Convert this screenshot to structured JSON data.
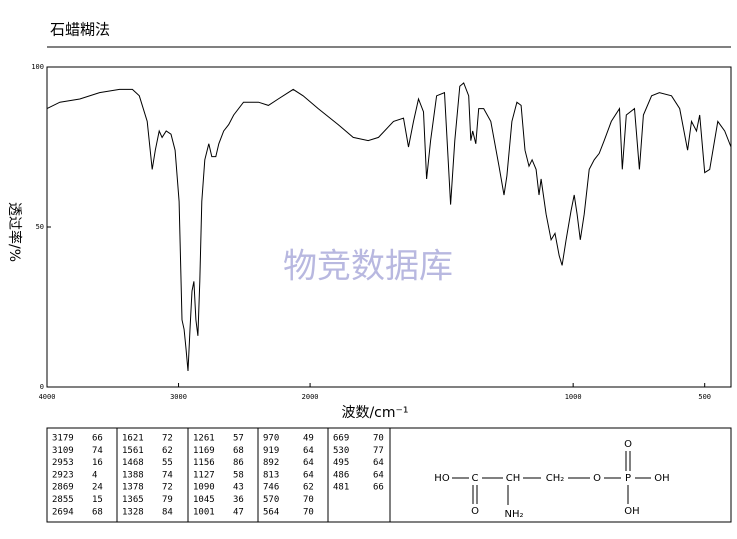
{
  "chart_data": {
    "type": "line",
    "title": "石蜡糊法",
    "x_label": "波数/cm⁻¹",
    "y_label": "透过率/%",
    "watermark": "物竞数据库",
    "xlim": [
      4000,
      400
    ],
    "xscale_break": 2000,
    "xscale_ratio": 2,
    "ylim": [
      0,
      100
    ],
    "xticks": [
      4000,
      3000,
      2000,
      1000,
      500
    ],
    "yticks": [
      0,
      50,
      100
    ],
    "color": "#000000",
    "x": [
      4000,
      3902,
      3751,
      3600,
      3449,
      3351,
      3298,
      3238,
      3200,
      3177,
      3147,
      3125,
      3094,
      3057,
      3026,
      2996,
      2974,
      2958,
      2943,
      2928,
      2913,
      2898,
      2883,
      2868,
      2853,
      2838,
      2823,
      2800,
      2770,
      2747,
      2717,
      2694,
      2657,
      2619,
      2581,
      2506,
      2392,
      2317,
      2242,
      2128,
      2053,
      1969,
      1893,
      1836,
      1779,
      1740,
      1683,
      1645,
      1626,
      1607,
      1588,
      1569,
      1557,
      1542,
      1519,
      1489,
      1466,
      1450,
      1431,
      1416,
      1397,
      1389,
      1382,
      1370,
      1359,
      1340,
      1313,
      1282,
      1263,
      1252,
      1233,
      1214,
      1198,
      1183,
      1168,
      1156,
      1141,
      1130,
      1122,
      1103,
      1084,
      1069,
      1053,
      1042,
      1027,
      1008,
      996,
      985,
      973,
      958,
      939,
      920,
      901,
      882,
      855,
      824,
      813,
      798,
      767,
      748,
      733,
      702,
      672,
      626,
      595,
      565,
      550,
      531,
      519,
      500,
      481,
      450,
      424,
      400
    ],
    "values": [
      87,
      89,
      90,
      92,
      93,
      93,
      91,
      83,
      68,
      74,
      80,
      78,
      80,
      79,
      74,
      58,
      21,
      18,
      12,
      5,
      18,
      30,
      33,
      21,
      16,
      33,
      58,
      71,
      76,
      72,
      72,
      76,
      80,
      82,
      85,
      89,
      89,
      88,
      90,
      93,
      91,
      87,
      82,
      78,
      77,
      78,
      83,
      84,
      75,
      83,
      90,
      86,
      65,
      77,
      91,
      92,
      57,
      77,
      94,
      95,
      91,
      77,
      80,
      76,
      87,
      87,
      83,
      69,
      60,
      66,
      83,
      89,
      88,
      74,
      69,
      71,
      68,
      60,
      65,
      54,
      46,
      48,
      41,
      38,
      46,
      55,
      60,
      54,
      46,
      54,
      68,
      71,
      73,
      77,
      83,
      87,
      68,
      85,
      87,
      68,
      85,
      91,
      92,
      91,
      87,
      74,
      83,
      80,
      85,
      67,
      68,
      83,
      80,
      75
    ],
    "peaks": [
      [
        [
          3179,
          66
        ],
        [
          3109,
          74
        ],
        [
          2953,
          16
        ],
        [
          2923,
          4
        ],
        [
          2869,
          24
        ],
        [
          2855,
          15
        ],
        [
          2694,
          68
        ]
      ],
      [
        [
          1621,
          72
        ],
        [
          1561,
          62
        ],
        [
          1468,
          55
        ],
        [
          1388,
          74
        ],
        [
          1378,
          72
        ],
        [
          1365,
          79
        ],
        [
          1328,
          84
        ]
      ],
      [
        [
          1261,
          57
        ],
        [
          1169,
          68
        ],
        [
          1156,
          86
        ],
        [
          1127,
          58
        ],
        [
          1090,
          43
        ],
        [
          1045,
          36
        ],
        [
          1001,
          47
        ]
      ],
      [
        [
          970,
          49
        ],
        [
          919,
          64
        ],
        [
          892,
          64
        ],
        [
          813,
          64
        ],
        [
          746,
          62
        ],
        [
          570,
          70
        ],
        [
          564,
          70
        ]
      ],
      [
        [
          669,
          70
        ],
        [
          530,
          77
        ],
        [
          495,
          64
        ],
        [
          486,
          64
        ],
        [
          481,
          66
        ]
      ]
    ]
  },
  "structure": {
    "atoms": [
      "HO",
      "C",
      "CH",
      "CH₂",
      "O",
      "P",
      "OH",
      "O",
      "OH",
      "O",
      "NH₂"
    ]
  }
}
